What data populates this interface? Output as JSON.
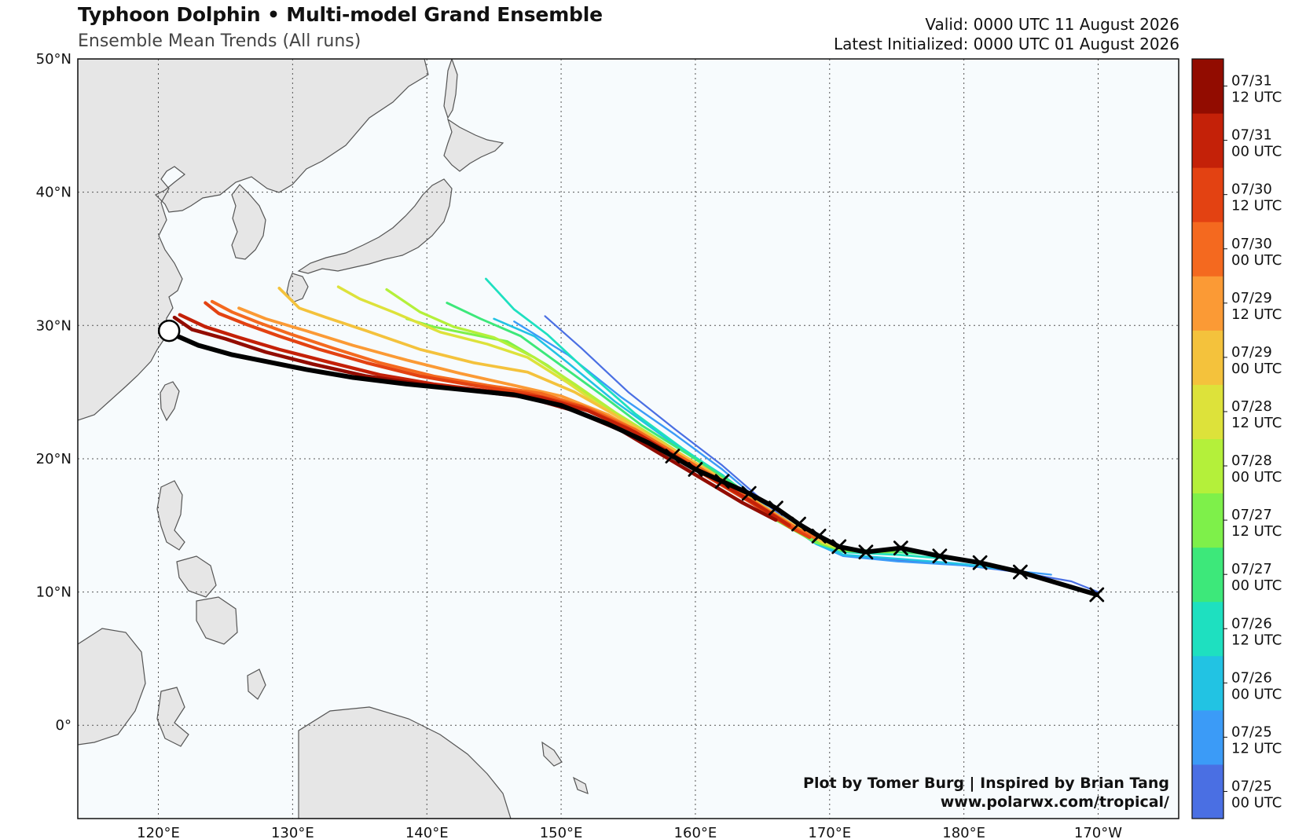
{
  "header": {
    "title": "Typhoon Dolphin • Multi-model Grand Ensemble",
    "subtitle": "Ensemble Mean Trends (All runs)",
    "valid": "Valid: 0000 UTC 11 August 2026",
    "latest": "Latest Initialized: 0000 UTC 01 August 2026"
  },
  "map": {
    "extent": {
      "lon_min": 114,
      "lon_max": 196,
      "lat_min": -7,
      "lat_max": 50
    },
    "lat_ticks": [
      {
        "value": 50,
        "label": "50°N"
      },
      {
        "value": 40,
        "label": "40°N"
      },
      {
        "value": 30,
        "label": "30°N"
      },
      {
        "value": 20,
        "label": "20°N"
      },
      {
        "value": 10,
        "label": "10°N"
      },
      {
        "value": 0,
        "label": "0°"
      }
    ],
    "lon_ticks": [
      {
        "value": 120,
        "label": "120°E"
      },
      {
        "value": 130,
        "label": "130°E"
      },
      {
        "value": 140,
        "label": "140°E"
      },
      {
        "value": 150,
        "label": "150°E"
      },
      {
        "value": 160,
        "label": "160°E"
      },
      {
        "value": 170,
        "label": "170°E"
      },
      {
        "value": 180,
        "label": "180°E"
      },
      {
        "value": 190,
        "label": "170°W"
      }
    ],
    "grid": true,
    "colors": {
      "ocean": "#f7fbfd",
      "land": "#e6e6e6",
      "coast": "#555555",
      "grid": "#555555",
      "mean_track": "#000000"
    }
  },
  "credits": {
    "line1": "Plot by Tomer Burg | Inspired by Brian Tang",
    "line2": "www.polarwx.com/tropical/"
  },
  "colorbar": {
    "bins": [
      {
        "label1": "07/25",
        "label2": "00 UTC",
        "color": "#4a6fe3"
      },
      {
        "label1": "07/25",
        "label2": "12 UTC",
        "color": "#3b9bf7"
      },
      {
        "label1": "07/26",
        "label2": "00 UTC",
        "color": "#22c3e3"
      },
      {
        "label1": "07/26",
        "label2": "12 UTC",
        "color": "#1ee0c0"
      },
      {
        "label1": "07/27",
        "label2": "00 UTC",
        "color": "#3de87a"
      },
      {
        "label1": "07/27",
        "label2": "12 UTC",
        "color": "#7ef04a"
      },
      {
        "label1": "07/28",
        "label2": "00 UTC",
        "color": "#b4f03a"
      },
      {
        "label1": "07/28",
        "label2": "12 UTC",
        "color": "#dde23a"
      },
      {
        "label1": "07/29",
        "label2": "00 UTC",
        "color": "#f4c23c"
      },
      {
        "label1": "07/29",
        "label2": "12 UTC",
        "color": "#fb9a35"
      },
      {
        "label1": "07/30",
        "label2": "00 UTC",
        "color": "#f4691f"
      },
      {
        "label1": "07/30",
        "label2": "12 UTC",
        "color": "#e34212"
      },
      {
        "label1": "07/31",
        "label2": "00 UTC",
        "color": "#c42108"
      },
      {
        "label1": "07/31",
        "label2": "12 UTC",
        "color": "#920c00"
      }
    ]
  },
  "tracks": [
    {
      "run": "07/25 00 UTC",
      "color": "#4a6fe3",
      "points": [
        [
          148.8,
          30.7
        ],
        [
          151.5,
          28.3
        ],
        [
          155,
          25.0
        ],
        [
          158.5,
          22.2
        ],
        [
          162,
          19.5
        ],
        [
          166,
          16.0
        ],
        [
          169,
          13.8
        ],
        [
          171,
          12.8
        ],
        [
          175,
          12.4
        ],
        [
          180,
          12.0
        ],
        [
          184,
          11.5
        ],
        [
          188,
          10.8
        ],
        [
          190,
          10.0
        ]
      ]
    },
    {
      "run": "07/25 12 UTC",
      "color": "#3b9bf7",
      "points": [
        [
          146.5,
          30.3
        ],
        [
          150.5,
          27.8
        ],
        [
          154.5,
          24.6
        ],
        [
          158.5,
          21.8
        ],
        [
          162,
          19.2
        ],
        [
          166,
          15.8
        ],
        [
          169,
          13.6
        ],
        [
          171,
          12.7
        ],
        [
          175,
          12.3
        ],
        [
          180,
          12.0
        ],
        [
          186.5,
          11.3
        ]
      ]
    },
    {
      "run": "07/26 00 UTC",
      "color": "#22c3e3",
      "points": [
        [
          145,
          30.5
        ],
        [
          148,
          29.2
        ],
        [
          150.5,
          27.2
        ],
        [
          154,
          24.3
        ],
        [
          158,
          21.4
        ],
        [
          162,
          18.8
        ],
        [
          166,
          15.6
        ],
        [
          169,
          13.6
        ],
        [
          171,
          12.8
        ],
        [
          175,
          12.5
        ],
        [
          180,
          12.1
        ],
        [
          184,
          11.6
        ]
      ]
    },
    {
      "run": "07/26 12 UTC",
      "color": "#1ee0c0",
      "points": [
        [
          144.4,
          33.5
        ],
        [
          146.5,
          31.2
        ],
        [
          149,
          29.3
        ],
        [
          152,
          26.5
        ],
        [
          155.5,
          23.4
        ],
        [
          159,
          20.8
        ],
        [
          162.5,
          18.4
        ],
        [
          166,
          15.6
        ],
        [
          169,
          13.7
        ],
        [
          171,
          13.0
        ],
        [
          175,
          12.8
        ],
        [
          180,
          12.4
        ],
        [
          181.5,
          12.2
        ]
      ]
    },
    {
      "run": "07/27 00 UTC",
      "color": "#3de87a",
      "points": [
        [
          141.5,
          31.7
        ],
        [
          144,
          30.5
        ],
        [
          147,
          29.2
        ],
        [
          150,
          27.0
        ],
        [
          153,
          24.8
        ],
        [
          156,
          22.5
        ],
        [
          159.5,
          20.3
        ],
        [
          163,
          18.0
        ],
        [
          166,
          15.5
        ],
        [
          169,
          13.8
        ],
        [
          171,
          13.2
        ],
        [
          175,
          13.0
        ],
        [
          178,
          12.8
        ]
      ]
    },
    {
      "run": "07/27 12 UTC",
      "color": "#7ef04a",
      "points": [
        [
          138.5,
          30.5
        ],
        [
          140.5,
          29.9
        ],
        [
          143,
          29.4
        ],
        [
          146,
          28.8
        ],
        [
          149,
          27.0
        ],
        [
          152,
          24.8
        ],
        [
          155.5,
          22.5
        ],
        [
          159,
          20.3
        ],
        [
          162.5,
          18.0
        ],
        [
          166,
          15.4
        ],
        [
          169,
          13.7
        ],
        [
          171,
          13.1
        ],
        [
          173,
          13.0
        ],
        [
          175,
          13.0
        ]
      ]
    },
    {
      "run": "07/28 00 UTC",
      "color": "#b4f03a",
      "points": [
        [
          137,
          32.7
        ],
        [
          139.5,
          31.0
        ],
        [
          142,
          29.9
        ],
        [
          145,
          29.1
        ],
        [
          148,
          27.6
        ],
        [
          151,
          25.6
        ],
        [
          154,
          23.5
        ],
        [
          157.5,
          21.3
        ],
        [
          161,
          19.0
        ],
        [
          164.5,
          16.7
        ],
        [
          167.5,
          14.8
        ],
        [
          170,
          13.5
        ],
        [
          172,
          13.1
        ]
      ]
    },
    {
      "run": "07/28 12 UTC",
      "color": "#dde23a",
      "points": [
        [
          133.4,
          32.9
        ],
        [
          135,
          32.0
        ],
        [
          137.5,
          31.0
        ],
        [
          141,
          29.5
        ],
        [
          144.5,
          28.6
        ],
        [
          147.5,
          27.6
        ],
        [
          150.5,
          25.7
        ],
        [
          153.5,
          23.6
        ],
        [
          157,
          21.4
        ],
        [
          160.5,
          19.2
        ],
        [
          164,
          17.1
        ],
        [
          167,
          15.1
        ],
        [
          169.5,
          13.7
        ],
        [
          171,
          13.2
        ]
      ]
    },
    {
      "run": "07/29 00 UTC",
      "color": "#f4c23c",
      "points": [
        [
          129,
          32.8
        ],
        [
          130.5,
          31.3
        ],
        [
          132.5,
          30.6
        ],
        [
          135.5,
          29.6
        ],
        [
          139.5,
          28.2
        ],
        [
          143.5,
          27.2
        ],
        [
          147.5,
          26.5
        ],
        [
          151,
          25.0
        ],
        [
          154,
          23.3
        ],
        [
          157.5,
          21.2
        ],
        [
          161,
          19.1
        ],
        [
          164.5,
          16.8
        ],
        [
          167.5,
          14.9
        ],
        [
          169.5,
          13.8
        ]
      ]
    },
    {
      "run": "07/29 12 UTC",
      "color": "#fb9a35",
      "points": [
        [
          126,
          31.3
        ],
        [
          128,
          30.5
        ],
        [
          131,
          29.6
        ],
        [
          134.5,
          28.5
        ],
        [
          138.5,
          27.4
        ],
        [
          142.5,
          26.4
        ],
        [
          146.5,
          25.5
        ],
        [
          150,
          24.7
        ],
        [
          153.5,
          23.3
        ],
        [
          157,
          21.3
        ],
        [
          160.5,
          19.2
        ],
        [
          164,
          17.0
        ],
        [
          167,
          15.0
        ],
        [
          169,
          14.0
        ]
      ]
    },
    {
      "run": "07/30 00 UTC",
      "color": "#f4691f",
      "points": [
        [
          124,
          31.8
        ],
        [
          125.5,
          31.0
        ],
        [
          127.5,
          30.2
        ],
        [
          130,
          29.3
        ],
        [
          133,
          28.3
        ],
        [
          136.5,
          27.2
        ],
        [
          140.5,
          26.2
        ],
        [
          144.5,
          25.5
        ],
        [
          148.5,
          24.9
        ],
        [
          152,
          23.8
        ],
        [
          155.5,
          22.2
        ],
        [
          158.5,
          20.4
        ],
        [
          161.5,
          18.6
        ],
        [
          164.5,
          16.7
        ],
        [
          167.5,
          14.8
        ],
        [
          169,
          14.0
        ]
      ]
    },
    {
      "run": "07/30 12 UTC",
      "color": "#e34212",
      "points": [
        [
          123.5,
          31.7
        ],
        [
          124.5,
          30.9
        ],
        [
          126.5,
          30.1
        ],
        [
          129,
          29.2
        ],
        [
          132,
          28.2
        ],
        [
          135.5,
          27.2
        ],
        [
          139.5,
          26.2
        ],
        [
          143.5,
          25.5
        ],
        [
          147.5,
          24.9
        ],
        [
          151.5,
          23.9
        ],
        [
          155,
          22.3
        ],
        [
          158,
          20.4
        ],
        [
          161,
          18.6
        ],
        [
          164,
          16.8
        ],
        [
          167,
          14.9
        ],
        [
          168.5,
          14.1
        ]
      ]
    },
    {
      "run": "07/31 00 UTC",
      "color": "#c42108",
      "points": [
        [
          121.6,
          30.8
        ],
        [
          123.5,
          29.9
        ],
        [
          126,
          29.1
        ],
        [
          129,
          28.2
        ],
        [
          132.5,
          27.3
        ],
        [
          136.5,
          26.3
        ],
        [
          140.5,
          25.6
        ],
        [
          144.5,
          25.1
        ],
        [
          148.5,
          24.6
        ],
        [
          152,
          23.6
        ],
        [
          155.5,
          22.0
        ],
        [
          158.5,
          20.2
        ],
        [
          161.5,
          18.4
        ],
        [
          164.5,
          16.6
        ],
        [
          167,
          15.0
        ]
      ]
    },
    {
      "run": "07/31 12 UTC",
      "color": "#920c00",
      "points": [
        [
          121.2,
          30.6
        ],
        [
          122.5,
          29.7
        ],
        [
          125,
          29.0
        ],
        [
          128,
          28.0
        ],
        [
          131.5,
          27.1
        ],
        [
          135.5,
          26.2
        ],
        [
          139.5,
          25.6
        ],
        [
          143.5,
          25.1
        ],
        [
          147.5,
          24.6
        ],
        [
          151,
          23.6
        ],
        [
          154.5,
          22.1
        ],
        [
          157.5,
          20.3
        ],
        [
          160.5,
          18.5
        ],
        [
          163.5,
          16.7
        ],
        [
          166,
          15.4
        ]
      ]
    }
  ],
  "mean_track": [
    [
      121.2,
      29.3
    ],
    [
      123,
      28.5
    ],
    [
      125.5,
      27.8
    ],
    [
      128,
      27.3
    ],
    [
      131,
      26.7
    ],
    [
      134.5,
      26.1
    ],
    [
      138.5,
      25.6
    ],
    [
      142.5,
      25.2
    ],
    [
      146.5,
      24.8
    ],
    [
      150,
      24.0
    ],
    [
      153.5,
      22.6
    ],
    [
      156.5,
      21.2
    ],
    [
      158.3,
      20.2
    ],
    [
      160,
      19.2
    ],
    [
      162,
      18.3
    ],
    [
      164,
      17.4
    ],
    [
      166,
      16.3
    ],
    [
      167.7,
      15.1
    ],
    [
      169.2,
      14.2
    ],
    [
      170.7,
      13.4
    ],
    [
      172.7,
      13.0
    ],
    [
      175.3,
      13.3
    ],
    [
      178.2,
      12.7
    ],
    [
      181.2,
      12.2
    ],
    [
      184.2,
      11.5
    ],
    [
      189.9,
      9.8
    ]
  ],
  "mean_markers": [
    [
      158.3,
      20.2
    ],
    [
      160,
      19.2
    ],
    [
      162,
      18.3
    ],
    [
      164,
      17.4
    ],
    [
      166,
      16.3
    ],
    [
      167.7,
      15.1
    ],
    [
      169.2,
      14.2
    ],
    [
      170.7,
      13.4
    ],
    [
      172.7,
      13.0
    ],
    [
      175.3,
      13.3
    ],
    [
      178.2,
      12.7
    ],
    [
      181.2,
      12.2
    ],
    [
      184.2,
      11.5
    ],
    [
      189.9,
      9.8
    ]
  ],
  "landfall_circle": [
    120.8,
    29.6
  ]
}
